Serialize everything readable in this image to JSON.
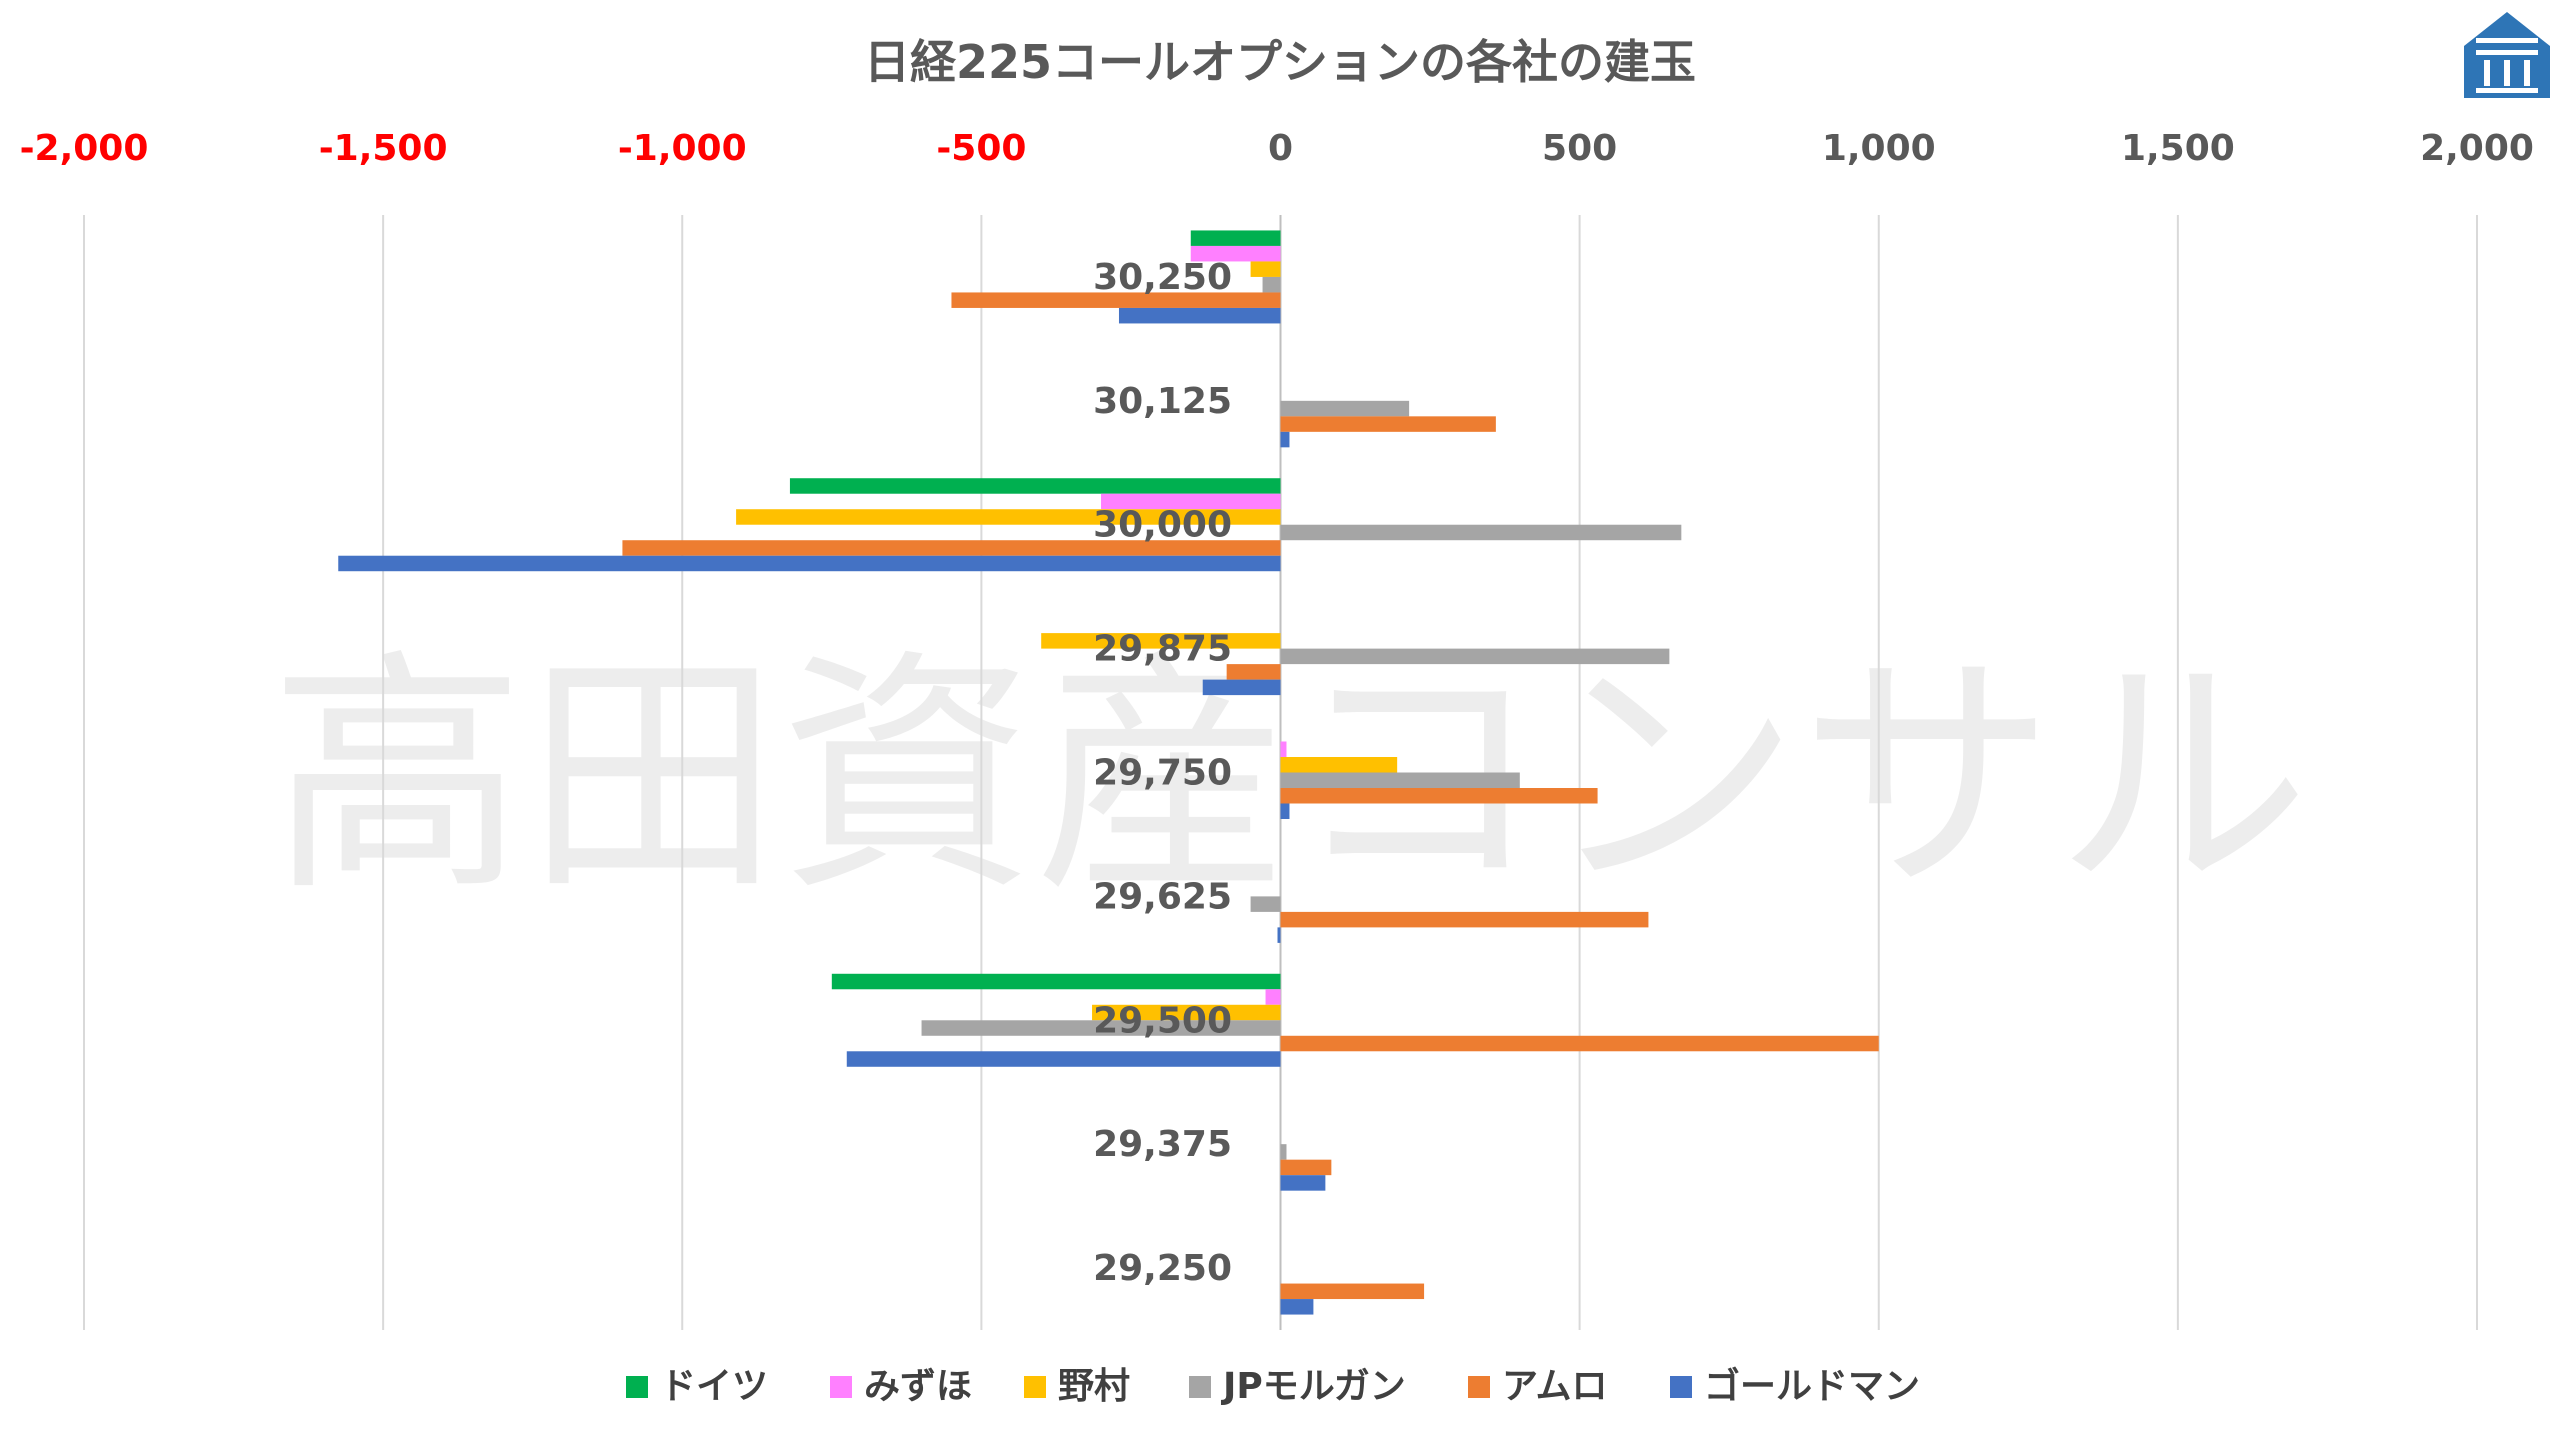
{
  "chart_data": {
    "type": "bar",
    "orientation": "horizontal",
    "title": "日経225コールオプションの各社の建玉",
    "watermark": "高田資産コンサル",
    "xlim": [
      -2000,
      2000
    ],
    "x_ticks": [
      {
        "value": -2000,
        "label": "-2,000"
      },
      {
        "value": -1500,
        "label": "-1,500"
      },
      {
        "value": -1000,
        "label": "-1,000"
      },
      {
        "value": -500,
        "label": "-500"
      },
      {
        "value": 0,
        "label": "0"
      },
      {
        "value": 500,
        "label": "500"
      },
      {
        "value": 1000,
        "label": "1,000"
      },
      {
        "value": 1500,
        "label": "1,500"
      },
      {
        "value": 2000,
        "label": "2,000"
      }
    ],
    "negative_tick_color": "#ff0000",
    "positive_tick_color": "#595959",
    "grid": true,
    "legend_position": "bottom",
    "categories": [
      "30,250",
      "30,125",
      "30,000",
      "29,875",
      "29,750",
      "29,625",
      "29,500",
      "29,375",
      "29,250"
    ],
    "series": [
      {
        "name": "ドイツ",
        "color": "#00b050",
        "values": [
          -150,
          0,
          -820,
          0,
          0,
          0,
          -750,
          0,
          0
        ]
      },
      {
        "name": "みずほ",
        "color": "#ff80ff",
        "values": [
          -150,
          0,
          -300,
          0,
          10,
          0,
          -25,
          0,
          0
        ]
      },
      {
        "name": "野村",
        "color": "#ffc000",
        "values": [
          -50,
          0,
          -910,
          -400,
          195,
          0,
          -315,
          0,
          0
        ]
      },
      {
        "name": "JPモルガン",
        "color": "#a5a5a5",
        "values": [
          -30,
          215,
          670,
          650,
          400,
          -50,
          -600,
          10,
          0
        ]
      },
      {
        "name": "アムロ",
        "color": "#ed7d31",
        "values": [
          -550,
          360,
          -1100,
          -90,
          530,
          615,
          1000,
          85,
          240
        ]
      },
      {
        "name": "ゴールドマン",
        "color": "#4472c4",
        "values": [
          -270,
          15,
          -1575,
          -130,
          15,
          -5,
          -725,
          75,
          55
        ]
      }
    ]
  },
  "logo": {
    "name": "takata-logo",
    "color": "#2e75b6"
  }
}
